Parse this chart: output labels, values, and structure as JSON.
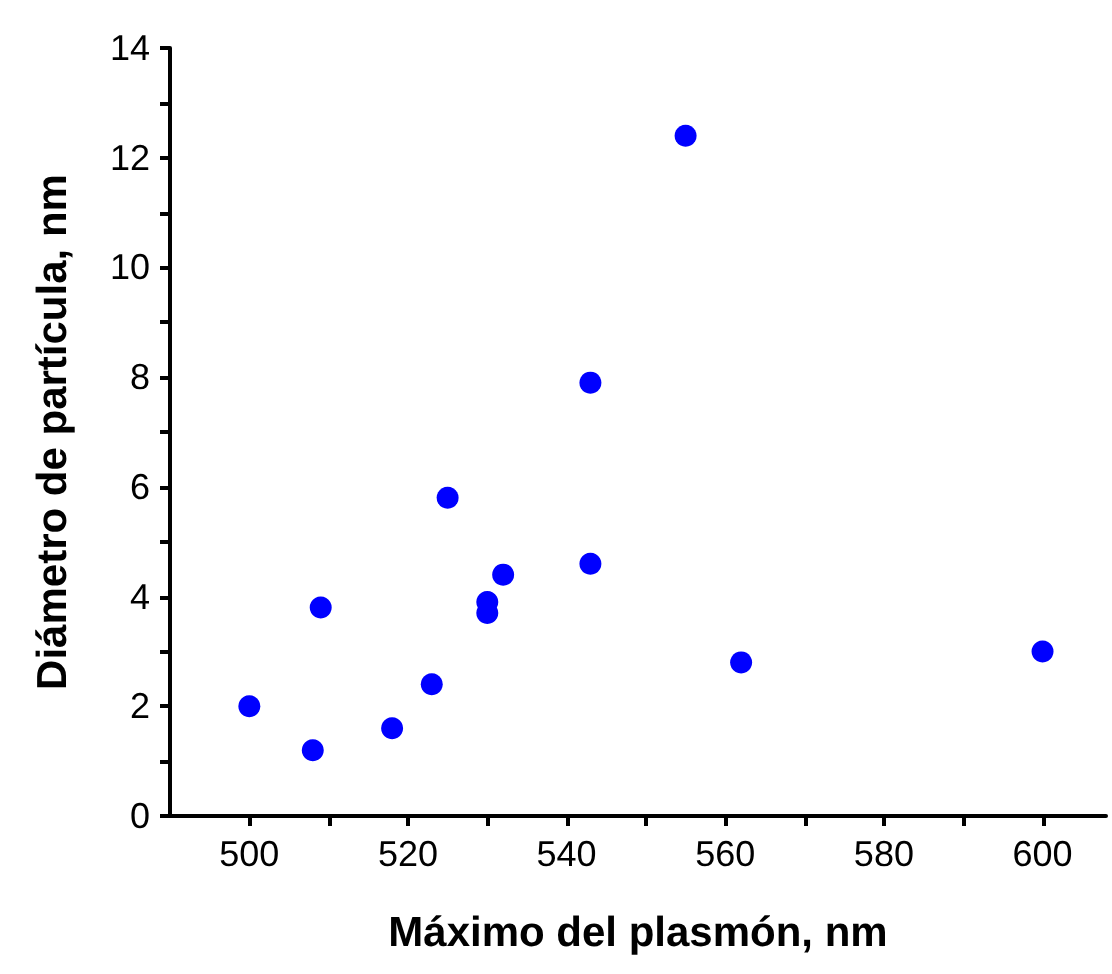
{
  "chart_data": {
    "type": "scatter",
    "xlabel": "Máximo del plasmón, nm",
    "ylabel": "Diámetro de partícula, nm",
    "x": [
      500,
      508,
      509,
      518,
      523,
      525,
      530,
      530,
      532,
      543,
      543,
      555,
      562,
      600
    ],
    "values": [
      2.0,
      1.2,
      3.8,
      1.6,
      2.4,
      5.8,
      3.9,
      3.7,
      4.4,
      4.6,
      7.9,
      12.4,
      2.8,
      3.0
    ],
    "color": "#0000ff",
    "marker": "circle",
    "xlim": [
      490,
      608
    ],
    "xticks": [
      500,
      {
        "value": 510,
        "label": null
      },
      520,
      {
        "value": 530,
        "label": null
      },
      540,
      {
        "value": 550,
        "label": null
      },
      560,
      {
        "value": 570,
        "label": null
      },
      580,
      {
        "value": 590,
        "label": null
      },
      600
    ],
    "ylim": [
      0,
      14
    ],
    "yticks": [
      0,
      {
        "value": 1,
        "label": null
      },
      2,
      {
        "value": 3,
        "label": null
      },
      4,
      {
        "value": 5,
        "label": null
      },
      6,
      {
        "value": 7,
        "label": null
      },
      8,
      {
        "value": 9,
        "label": null
      },
      10,
      {
        "value": 11,
        "label": null
      },
      12,
      {
        "value": 13,
        "label": null
      },
      14
    ],
    "grid": false
  }
}
